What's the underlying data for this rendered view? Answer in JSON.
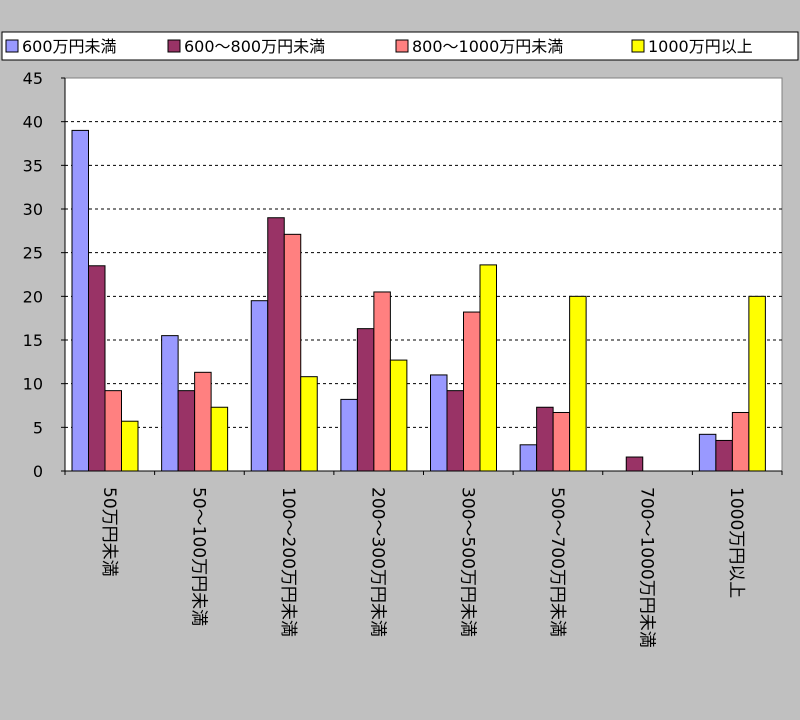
{
  "chart_data": {
    "type": "bar",
    "title": "",
    "xlabel": "",
    "ylabel": "",
    "ylim": [
      0,
      45
    ],
    "yticks": [
      0,
      5,
      10,
      15,
      20,
      25,
      30,
      35,
      40,
      45
    ],
    "grid": true,
    "legend_position": "top",
    "categories": [
      "50万円未満",
      "50～100万円未満",
      "100～200万円未満",
      "200～300万円未満",
      "300～500万円未満",
      "500～700万円未満",
      "700～1000万円未満",
      "1000万円以上"
    ],
    "series": [
      {
        "name": "600万円未満",
        "color": "#9999ff",
        "values": [
          39,
          15.5,
          19.5,
          8.2,
          11,
          3,
          0,
          4.2
        ]
      },
      {
        "name": "600～800万円未満",
        "color": "#993366",
        "values": [
          23.5,
          9.2,
          29,
          16.3,
          9.2,
          7.3,
          1.6,
          3.5
        ]
      },
      {
        "name": "800～1000万円未満",
        "color": "#ff8080",
        "values": [
          9.2,
          11.3,
          27.1,
          20.5,
          18.2,
          6.7,
          0,
          6.7
        ]
      },
      {
        "name": "1000万円以上",
        "color": "#ffff00",
        "values": [
          5.7,
          7.3,
          10.8,
          12.7,
          23.6,
          20,
          0,
          20
        ]
      }
    ]
  }
}
